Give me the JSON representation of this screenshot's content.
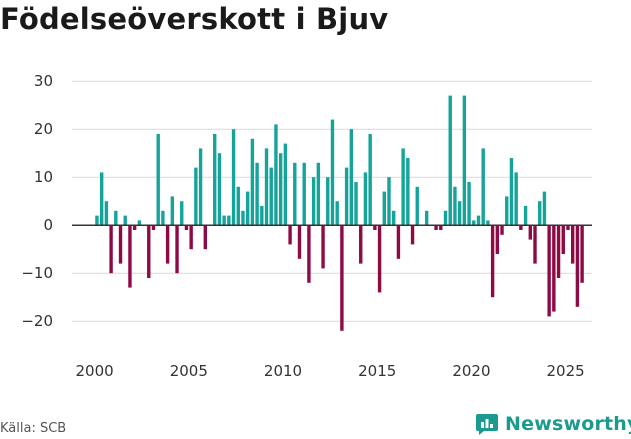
{
  "title": "Födelseöverskott i Bjuv",
  "source": "Källa: SCB",
  "brand": {
    "name": "Newsworthy",
    "icon": "newsworthy-logo-icon"
  },
  "colors": {
    "positive": "#15a39a",
    "negative": "#8e0a45",
    "grid": "#d9d9d9",
    "zero": "#333333"
  },
  "chart_data": {
    "type": "bar",
    "title": "Födelseöverskott i Bjuv",
    "xlabel": "",
    "ylabel": "",
    "ylim": [
      -26,
      34
    ],
    "yticks": [
      -20,
      -10,
      0,
      10,
      20,
      30
    ],
    "xlim": [
      1998.8,
      2026.4
    ],
    "xticks": [
      2000,
      2005,
      2010,
      2015,
      2020,
      2025
    ],
    "grid": true,
    "bar_period": "quarter",
    "x": [
      2000.0,
      2000.25,
      2000.5,
      2000.75,
      2001.0,
      2001.25,
      2001.5,
      2001.75,
      2002.0,
      2002.25,
      2002.5,
      2002.75,
      2003.0,
      2003.25,
      2003.5,
      2003.75,
      2004.0,
      2004.25,
      2004.5,
      2004.75,
      2005.0,
      2005.25,
      2005.5,
      2005.75,
      2006.0,
      2006.25,
      2006.5,
      2006.75,
      2007.0,
      2007.25,
      2007.5,
      2007.75,
      2008.0,
      2008.25,
      2008.5,
      2008.75,
      2009.0,
      2009.25,
      2009.5,
      2009.75,
      2010.0,
      2010.25,
      2010.5,
      2010.75,
      2011.0,
      2011.25,
      2011.5,
      2011.75,
      2012.0,
      2012.25,
      2012.5,
      2012.75,
      2013.0,
      2013.25,
      2013.5,
      2013.75,
      2014.0,
      2014.25,
      2014.5,
      2014.75,
      2015.0,
      2015.25,
      2015.5,
      2015.75,
      2016.0,
      2016.25,
      2016.5,
      2016.75,
      2017.0,
      2017.25,
      2017.5,
      2017.75,
      2018.0,
      2018.25,
      2018.5,
      2018.75,
      2019.0,
      2019.25,
      2019.5,
      2019.75,
      2020.0,
      2020.25,
      2020.5,
      2020.75,
      2021.0,
      2021.25,
      2021.5,
      2021.75,
      2022.0,
      2022.25,
      2022.5,
      2022.75,
      2023.0,
      2023.25,
      2023.5,
      2023.75,
      2024.0,
      2024.25,
      2024.5,
      2024.75,
      2025.0,
      2025.25,
      2025.5,
      2025.75
    ],
    "values": [
      2,
      11,
      5,
      -10,
      3,
      -8,
      2,
      -13,
      -1,
      1,
      0,
      -11,
      -1,
      19,
      3,
      -8,
      6,
      -10,
      5,
      -1,
      -5,
      12,
      16,
      -5,
      0,
      19,
      15,
      2,
      2,
      20,
      8,
      3,
      7,
      18,
      13,
      4,
      16,
      12,
      21,
      15,
      17,
      -4,
      13,
      -7,
      13,
      -12,
      10,
      13,
      -9,
      10,
      22,
      5,
      -22,
      12,
      20,
      9,
      -8,
      11,
      19,
      -1,
      -14,
      7,
      10,
      3,
      -7,
      16,
      14,
      -4,
      8,
      0,
      3,
      0,
      -1,
      -1,
      3,
      27,
      8,
      5,
      27,
      9,
      1,
      2,
      16,
      1,
      -15,
      -6,
      -2,
      6,
      14,
      11,
      -1,
      4,
      -3,
      -8,
      5,
      7,
      -19,
      -18,
      -11,
      -6,
      -1,
      -8,
      -17,
      -12
    ]
  }
}
